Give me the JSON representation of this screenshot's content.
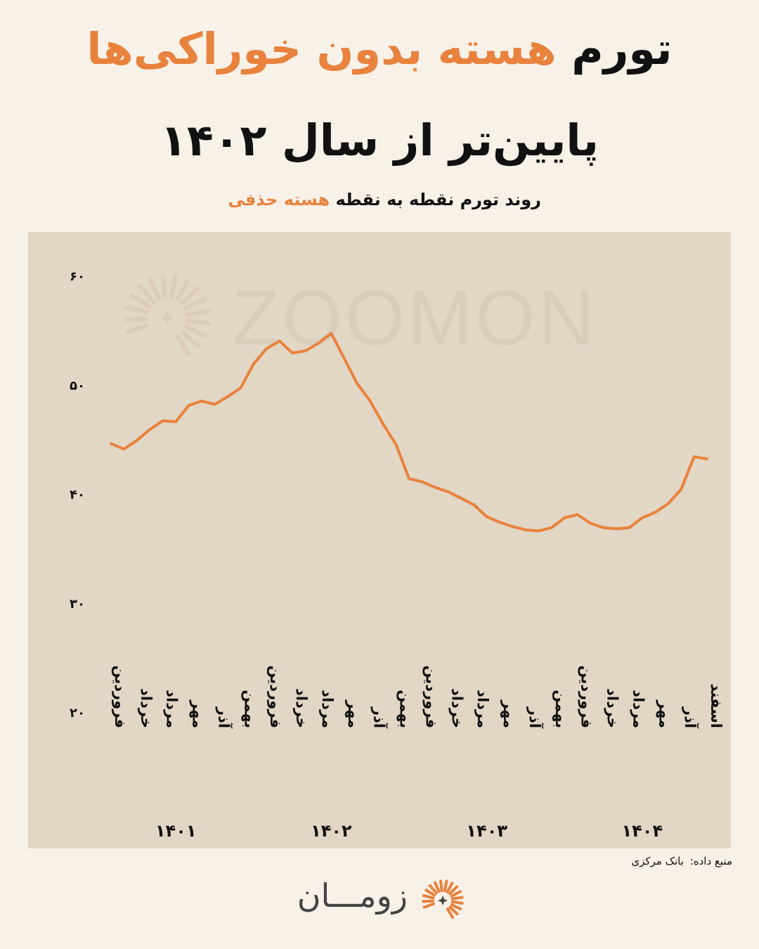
{
  "title": {
    "line1_prefix": "تورم",
    "line1_accent": "هسته بدون خوراکی‌ها",
    "line2": "پایین‌تر از سال ۱۴۰۲"
  },
  "subtitle": {
    "prefix": "روند تورم نقطه به نقطه",
    "accent": "هسته حذفی"
  },
  "watermark": "ZOOMON",
  "source": {
    "label": "منبع داده:",
    "value": "بانک مرکزی"
  },
  "brand": {
    "name": "زومـــان",
    "icon": "sunburst-logo-icon"
  },
  "colors": {
    "accent": "#e8823d",
    "background": "#f8f1e8",
    "panel": "#e2d6c5"
  },
  "chart_data": {
    "type": "line",
    "ylim": [
      20,
      60
    ],
    "yticks": [
      20,
      30,
      40,
      50,
      60
    ],
    "ytick_labels": [
      "۲۰",
      "۳۰",
      "۴۰",
      "۵۰",
      "۶۰"
    ],
    "x_month_labels": [
      "فروردین",
      "خرداد",
      "مرداد",
      "مهر",
      "آذر",
      "بهمن",
      "فروردین",
      "خرداد",
      "مرداد",
      "مهر",
      "آذر",
      "بهمن",
      "فروردین",
      "خرداد",
      "مرداد",
      "مهر",
      "آذر",
      "بهمن",
      "فروردین",
      "خرداد",
      "مرداد",
      "مهر",
      "آذر",
      "اسفند"
    ],
    "x_year_labels": [
      "۱۴۰۱",
      "۱۴۰۲",
      "۱۴۰۳",
      "۱۴۰۴"
    ],
    "series": [
      {
        "values": [
          44.6,
          44.1,
          44.9,
          45.9,
          46.7,
          46.6,
          48.1,
          48.5,
          48.2,
          48.9,
          49.7,
          51.9,
          53.3,
          54.0,
          52.9,
          53.1,
          53.8,
          54.7,
          52.4,
          50.1,
          48.5,
          46.4,
          44.5,
          41.4,
          41.1,
          40.6,
          40.2,
          39.6,
          39.0,
          37.9,
          37.4,
          37.0,
          36.7,
          36.6,
          36.9,
          37.8,
          38.1,
          37.3,
          36.9,
          36.8,
          36.9,
          37.8,
          38.3,
          39.1,
          40.4,
          43.4,
          43.2
        ]
      }
    ]
  }
}
